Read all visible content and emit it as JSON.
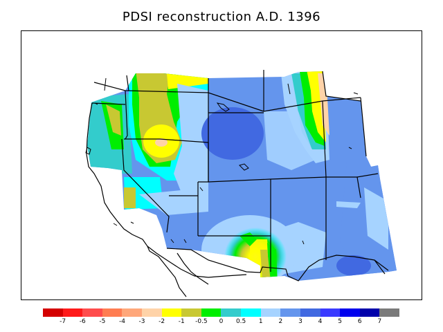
{
  "title": "PDSI reconstruction A.D. 1396",
  "colorbar": {
    "colors": [
      "#d40000",
      "#ff1a1a",
      "#ff4c4c",
      "#ff7d52",
      "#ffa77a",
      "#ffd3a8",
      "#ffff00",
      "#c8c832",
      "#00ee00",
      "#33cccc",
      "#00ffff",
      "#a6d3ff",
      "#6495ed",
      "#4169e1",
      "#3a3aff",
      "#0000ee",
      "#0000aa",
      "#7a7a7a"
    ],
    "labels": [
      "-7",
      "-6",
      "-5",
      "-4",
      "-3",
      "-2",
      "-1",
      "-0.5",
      "0",
      "0.5",
      "1",
      "2",
      "3",
      "4",
      "5",
      "6",
      "7"
    ]
  }
}
